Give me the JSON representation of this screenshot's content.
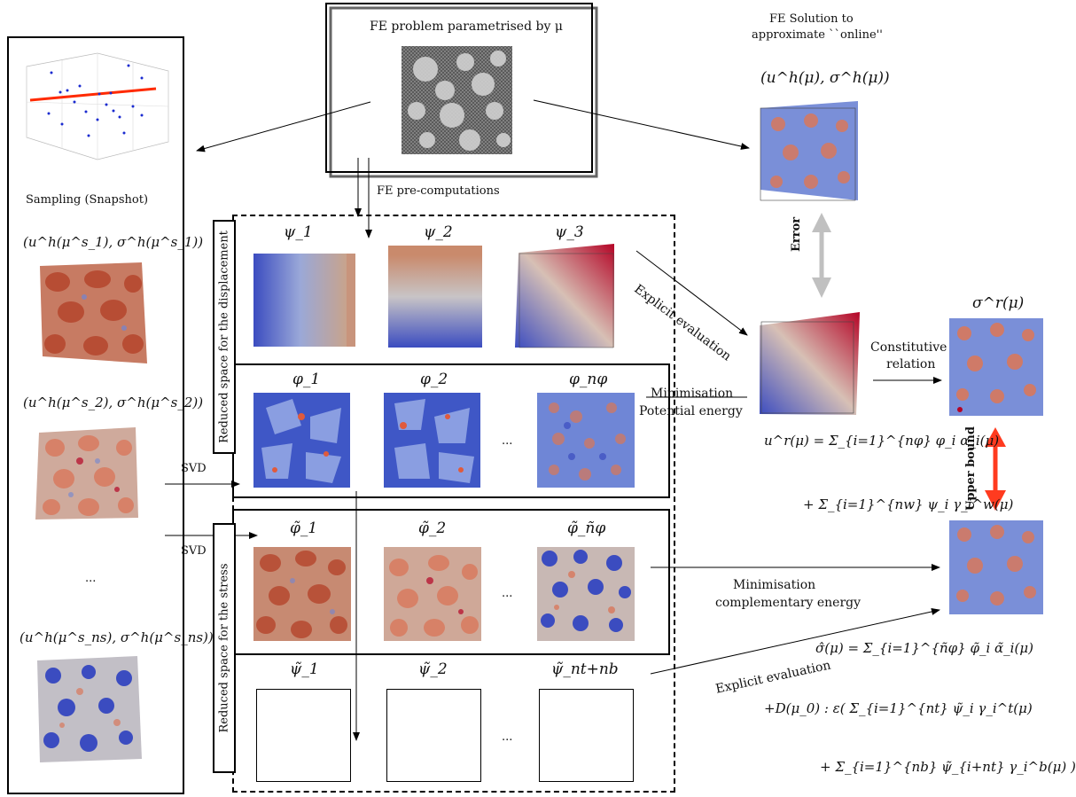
{
  "top_box": {
    "title": "FE problem parametrised by μ"
  },
  "fe_solution": {
    "title_line1": "FE Solution to",
    "title_line2": "approximate ``online''",
    "formula": "(u^h(μ), σ^h(μ))"
  },
  "left_panel": {
    "sampling_label": "Sampling (Snapshot)",
    "snap1": "(u^h(μ^s_1), σ^h(μ^s_1))",
    "snap2": "(u^h(μ^s_2), σ^h(μ^s_2))",
    "dots": "...",
    "snapn": "(u^h(μ^s_ns), σ^h(μ^s_ns))"
  },
  "fe_precomp": "FE pre-computations",
  "svd1": "SVD",
  "svd2": "SVD",
  "disp_space": {
    "label": "Reduced space for the displacement",
    "psi": [
      "ψ_1",
      "ψ_2",
      "ψ_3"
    ],
    "phi": [
      "φ_1",
      "φ_2",
      "φ_nφ"
    ],
    "dots": "..."
  },
  "stress_space": {
    "label": "Reduced space for the stress",
    "phi_t": [
      "φ̃_1",
      "φ̃_2",
      "φ̃_ñφ"
    ],
    "psi_t": [
      "ψ̃_1",
      "ψ̃_2",
      "ψ̃_nt+nb"
    ],
    "dots1": "...",
    "dots2": "..."
  },
  "arrows": {
    "explicit1": "Explicit evaluation",
    "minim_pot_1": "Minimisation",
    "minim_pot_2": "Potential energy",
    "minim_comp_1": "Minimisation",
    "minim_comp_2": "complementary energy",
    "explicit2": "Explicit evaluation",
    "constitutive_1": "Constitutive",
    "constitutive_2": "relation",
    "error": "Error",
    "upper_bound": "Upper bound"
  },
  "sigma_r": "σ^r(μ)",
  "formulas": {
    "ur_line1": "u^r(μ) = Σ_{i=1}^{nφ} φ_i α_i(μ)",
    "ur_line2": "+ Σ_{i=1}^{nw} ψ_i γ_i^w(μ)",
    "sig_line1": "σ̂(μ) = Σ_{i=1}^{ñφ} φ̃_i α̃_i(μ)",
    "sig_line2": "+D(μ_0) : ε( Σ_{i=1}^{nt} ψ̃_i γ_i^t(μ)",
    "sig_line3": "+ Σ_{i=1}^{nb} ψ̃_{i+nt} γ_i^b(μ) )"
  },
  "colors": {
    "blue": "#3b4cc0",
    "red": "#b40426",
    "grey": "#c0c0c0",
    "upper": "#ff3b1f"
  }
}
